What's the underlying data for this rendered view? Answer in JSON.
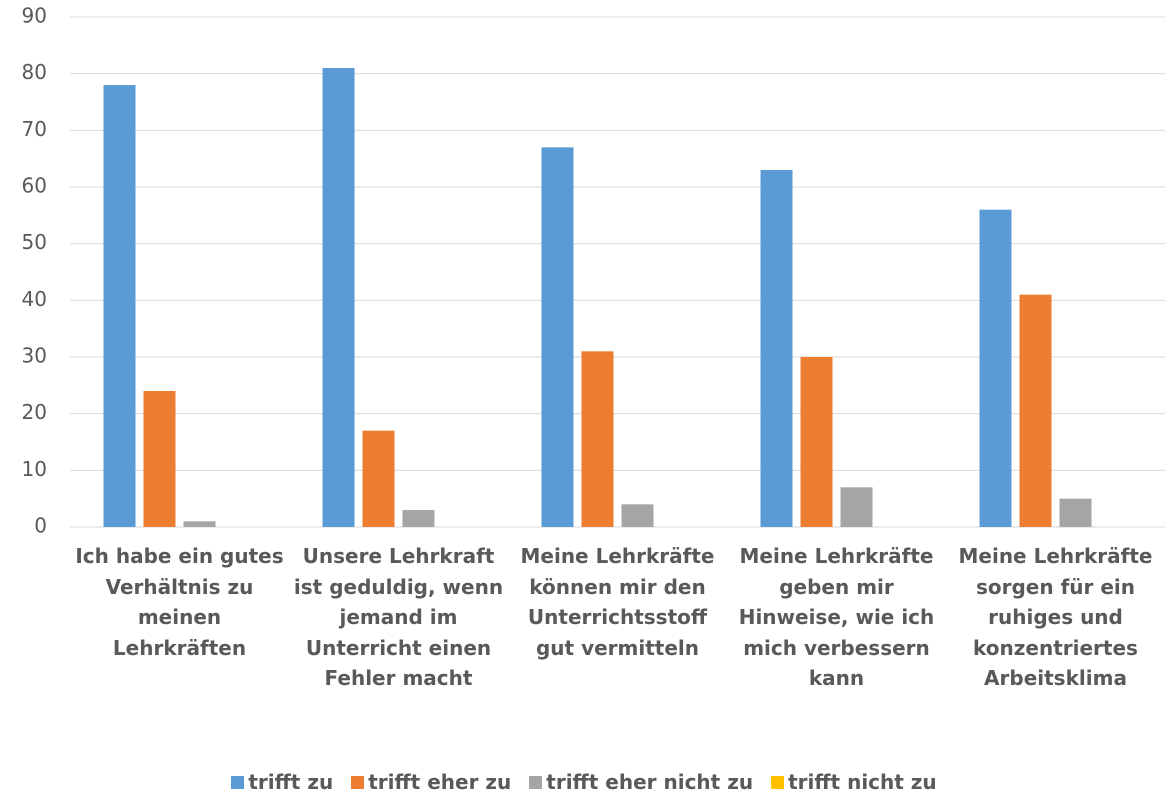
{
  "chart_data": {
    "type": "bar",
    "categories": [
      "Ich habe ein gutes Verhältnis zu meinen Lehrkräften",
      "Unsere Lehrkraft ist geduldig, wenn jemand im Unterricht einen Fehler macht",
      "Meine Lehrkräfte können mir den Unterrichtsstoff gut vermitteln",
      "Meine Lehrkräfte geben mir Hinweise, wie ich mich verbessern kann",
      "Meine Lehrkräfte sorgen für ein ruhiges und konzentriertes Arbeitsklima"
    ],
    "series": [
      {
        "name": "trifft zu",
        "color": "#5b9bd5",
        "values": [
          78,
          81,
          67,
          63,
          56
        ]
      },
      {
        "name": "trifft eher zu",
        "color": "#ed7d31",
        "values": [
          24,
          17,
          31,
          30,
          41
        ]
      },
      {
        "name": "trifft eher nicht zu",
        "color": "#a5a5a5",
        "values": [
          1,
          3,
          4,
          7,
          5
        ]
      },
      {
        "name": "trifft nicht zu",
        "color": "#ffc000",
        "values": [
          0,
          0,
          0,
          0,
          0
        ]
      }
    ],
    "ylim": [
      0,
      90
    ],
    "yticks": [
      0,
      10,
      20,
      30,
      40,
      50,
      60,
      70,
      80,
      90
    ],
    "grid": true,
    "legend": "bottom"
  }
}
